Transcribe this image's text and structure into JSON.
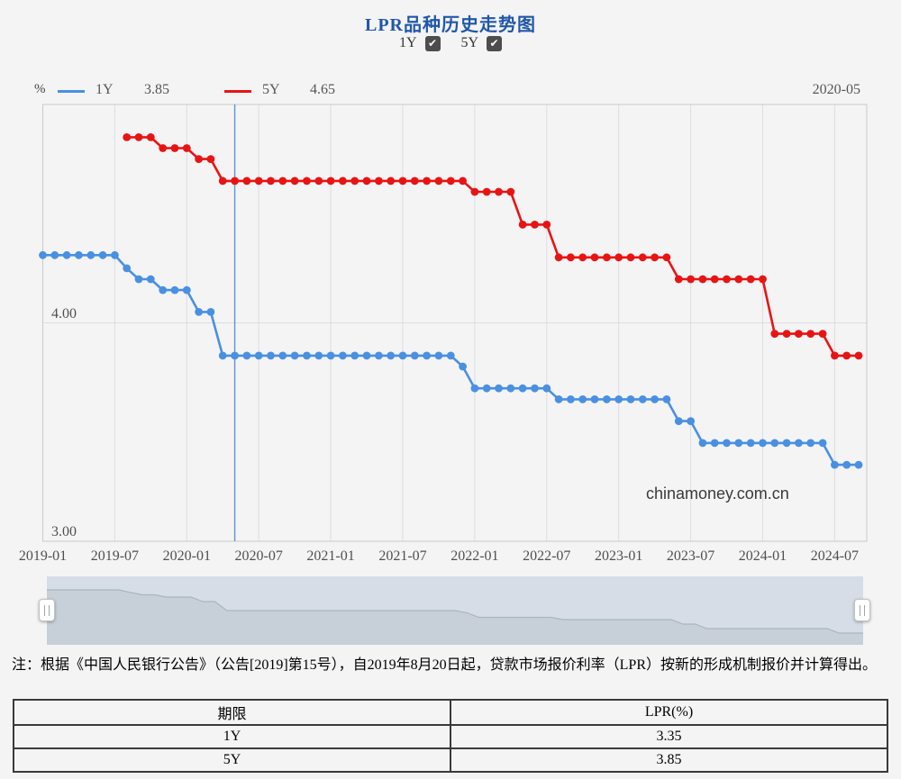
{
  "page": {
    "title": "LPR品种历史走势图",
    "watermark": "chinamoney.com.cn"
  },
  "controls": {
    "series_toggles": [
      {
        "label": "1Y",
        "checked": true
      },
      {
        "label": "5Y",
        "checked": true
      }
    ]
  },
  "tooltip": {
    "date": "2020-05",
    "values": [
      {
        "series": "1Y",
        "value": "3.85"
      },
      {
        "series": "5Y",
        "value": "4.65"
      }
    ]
  },
  "chart_data": {
    "type": "line",
    "title": "LPR品种历史走势图",
    "xlabel": "",
    "ylabel": "%",
    "ylim": [
      3.0,
      5.0
    ],
    "grid": true,
    "legend_position": "top",
    "crosshair_month": "2020-05",
    "y_ticks": [
      {
        "label": "4.00",
        "value": 4.0
      },
      {
        "label": "3.00",
        "value": 3.0
      }
    ],
    "x_tick_labels": [
      "2019-01",
      "2019-07",
      "2020-01",
      "2020-07",
      "2021-01",
      "2021-07",
      "2022-01",
      "2022-07",
      "2023-01",
      "2023-07",
      "2024-01",
      "2024-07"
    ],
    "x": [
      "2019-01",
      "2019-02",
      "2019-03",
      "2019-04",
      "2019-05",
      "2019-06",
      "2019-07",
      "2019-08",
      "2019-09",
      "2019-10",
      "2019-11",
      "2019-12",
      "2020-01",
      "2020-02",
      "2020-03",
      "2020-04",
      "2020-05",
      "2020-06",
      "2020-07",
      "2020-08",
      "2020-09",
      "2020-10",
      "2020-11",
      "2020-12",
      "2021-01",
      "2021-02",
      "2021-03",
      "2021-04",
      "2021-05",
      "2021-06",
      "2021-07",
      "2021-08",
      "2021-09",
      "2021-10",
      "2021-11",
      "2021-12",
      "2022-01",
      "2022-02",
      "2022-03",
      "2022-04",
      "2022-05",
      "2022-06",
      "2022-07",
      "2022-08",
      "2022-09",
      "2022-10",
      "2022-11",
      "2022-12",
      "2023-01",
      "2023-02",
      "2023-03",
      "2023-04",
      "2023-05",
      "2023-06",
      "2023-07",
      "2023-08",
      "2023-09",
      "2023-10",
      "2023-11",
      "2023-12",
      "2024-01",
      "2024-02",
      "2024-03",
      "2024-04",
      "2024-05",
      "2024-06",
      "2024-07",
      "2024-08",
      "2024-09"
    ],
    "series": [
      {
        "name": "1Y",
        "color": "#4a90e2",
        "values": [
          4.31,
          4.31,
          4.31,
          4.31,
          4.31,
          4.31,
          4.31,
          4.25,
          4.2,
          4.2,
          4.15,
          4.15,
          4.15,
          4.05,
          4.05,
          3.85,
          3.85,
          3.85,
          3.85,
          3.85,
          3.85,
          3.85,
          3.85,
          3.85,
          3.85,
          3.85,
          3.85,
          3.85,
          3.85,
          3.85,
          3.85,
          3.85,
          3.85,
          3.85,
          3.85,
          3.8,
          3.7,
          3.7,
          3.7,
          3.7,
          3.7,
          3.7,
          3.7,
          3.65,
          3.65,
          3.65,
          3.65,
          3.65,
          3.65,
          3.65,
          3.65,
          3.65,
          3.65,
          3.55,
          3.55,
          3.45,
          3.45,
          3.45,
          3.45,
          3.45,
          3.45,
          3.45,
          3.45,
          3.45,
          3.45,
          3.45,
          3.35,
          3.35,
          3.35
        ]
      },
      {
        "name": "5Y",
        "color": "#e81414",
        "values": [
          null,
          null,
          null,
          null,
          null,
          null,
          null,
          4.85,
          4.85,
          4.85,
          4.8,
          4.8,
          4.8,
          4.75,
          4.75,
          4.65,
          4.65,
          4.65,
          4.65,
          4.65,
          4.65,
          4.65,
          4.65,
          4.65,
          4.65,
          4.65,
          4.65,
          4.65,
          4.65,
          4.65,
          4.65,
          4.65,
          4.65,
          4.65,
          4.65,
          4.65,
          4.6,
          4.6,
          4.6,
          4.6,
          4.45,
          4.45,
          4.45,
          4.3,
          4.3,
          4.3,
          4.3,
          4.3,
          4.3,
          4.3,
          4.3,
          4.3,
          4.3,
          4.2,
          4.2,
          4.2,
          4.2,
          4.2,
          4.2,
          4.2,
          4.2,
          3.95,
          3.95,
          3.95,
          3.95,
          3.95,
          3.85,
          3.85,
          3.85
        ]
      }
    ]
  },
  "note": {
    "text": "注：根据《中国人民银行公告》（公告[2019]第15号），自2019年8月20日起，贷款市场报价利率（LPR）按新的形成机制报价并计算得出。"
  },
  "table": {
    "headers": [
      "期限",
      "LPR(%)"
    ],
    "rows": [
      [
        "1Y",
        "3.35"
      ],
      [
        "5Y",
        "3.85"
      ]
    ]
  }
}
